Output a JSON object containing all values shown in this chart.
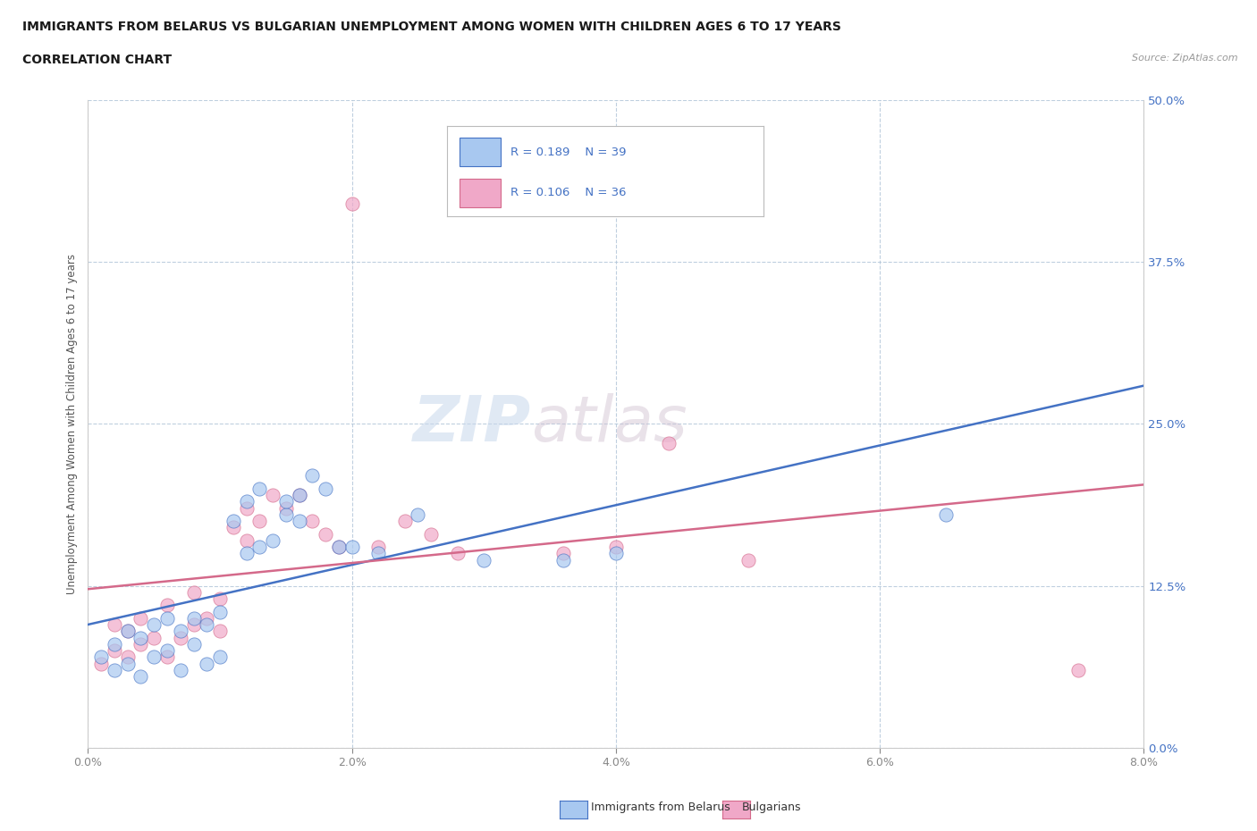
{
  "title": "IMMIGRANTS FROM BELARUS VS BULGARIAN UNEMPLOYMENT AMONG WOMEN WITH CHILDREN AGES 6 TO 17 YEARS",
  "subtitle": "CORRELATION CHART",
  "source": "Source: ZipAtlas.com",
  "xlabel_vals": [
    0.0,
    0.02,
    0.04,
    0.06,
    0.08
  ],
  "ylabel_vals": [
    0.0,
    0.125,
    0.25,
    0.375,
    0.5
  ],
  "xlim": [
    0.0,
    0.08
  ],
  "ylim": [
    0.0,
    0.5
  ],
  "ylabel": "Unemployment Among Women with Children Ages 6 to 17 years",
  "legend_label1": "Immigrants from Belarus",
  "legend_label2": "Bulgarians",
  "color_belarus": "#a8c8f0",
  "color_bulgarian": "#f0a8c8",
  "trendline_color_belarus": "#4472c4",
  "trendline_color_bulgarian": "#d4698a",
  "scatter_belarus_x": [
    0.001,
    0.002,
    0.002,
    0.003,
    0.003,
    0.004,
    0.004,
    0.005,
    0.005,
    0.006,
    0.006,
    0.007,
    0.007,
    0.008,
    0.008,
    0.009,
    0.009,
    0.01,
    0.01,
    0.011,
    0.012,
    0.012,
    0.013,
    0.013,
    0.014,
    0.015,
    0.015,
    0.016,
    0.016,
    0.017,
    0.018,
    0.019,
    0.02,
    0.022,
    0.025,
    0.03,
    0.036,
    0.04,
    0.065
  ],
  "scatter_belarus_y": [
    0.07,
    0.06,
    0.08,
    0.065,
    0.09,
    0.055,
    0.085,
    0.07,
    0.095,
    0.075,
    0.1,
    0.06,
    0.09,
    0.08,
    0.1,
    0.065,
    0.095,
    0.07,
    0.105,
    0.175,
    0.15,
    0.19,
    0.155,
    0.2,
    0.16,
    0.18,
    0.19,
    0.195,
    0.175,
    0.21,
    0.2,
    0.155,
    0.155,
    0.15,
    0.18,
    0.145,
    0.145,
    0.15,
    0.18
  ],
  "scatter_bulgarian_x": [
    0.001,
    0.002,
    0.002,
    0.003,
    0.003,
    0.004,
    0.004,
    0.005,
    0.006,
    0.006,
    0.007,
    0.008,
    0.008,
    0.009,
    0.01,
    0.01,
    0.011,
    0.012,
    0.012,
    0.013,
    0.014,
    0.015,
    0.016,
    0.017,
    0.018,
    0.019,
    0.02,
    0.022,
    0.024,
    0.026,
    0.028,
    0.036,
    0.04,
    0.044,
    0.05,
    0.075
  ],
  "scatter_bulgarian_y": [
    0.065,
    0.075,
    0.095,
    0.07,
    0.09,
    0.08,
    0.1,
    0.085,
    0.07,
    0.11,
    0.085,
    0.095,
    0.12,
    0.1,
    0.09,
    0.115,
    0.17,
    0.16,
    0.185,
    0.175,
    0.195,
    0.185,
    0.195,
    0.175,
    0.165,
    0.155,
    0.42,
    0.155,
    0.175,
    0.165,
    0.15,
    0.15,
    0.155,
    0.235,
    0.145,
    0.06
  ],
  "watermark_zip": "ZIP",
  "watermark_atlas": "atlas",
  "background_color": "#ffffff",
  "grid_color": "#b0c4d8",
  "r_belarus": 0.189,
  "n_belarus": 39,
  "r_bulgarian": 0.106,
  "n_bulgarian": 36,
  "tick_label_color_y": "#4472c4",
  "tick_label_color_x": "#888888",
  "spine_color": "#cccccc"
}
